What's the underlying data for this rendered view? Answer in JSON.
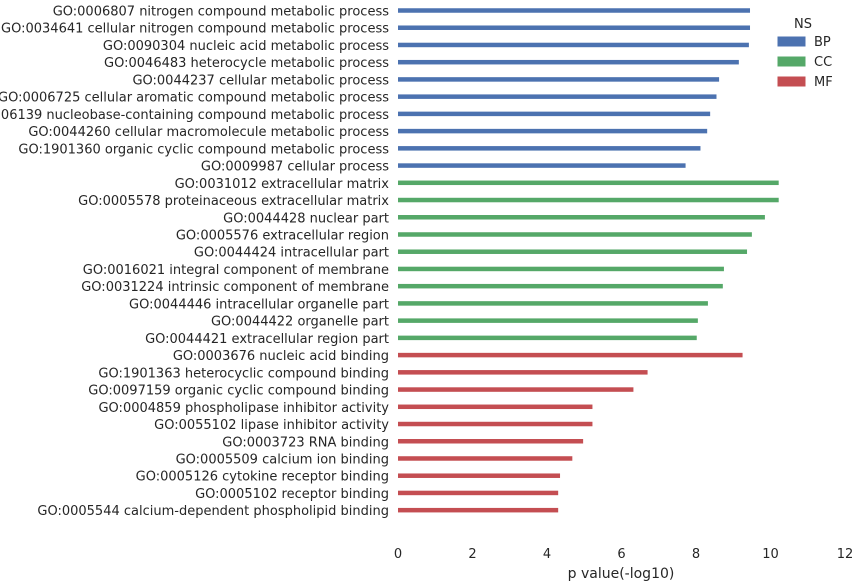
{
  "chart_data": {
    "type": "bar",
    "orientation": "horizontal",
    "xlabel": "p value(-log10)",
    "ylabel": "",
    "xlim": [
      0,
      12
    ],
    "xticks": [
      0,
      2,
      4,
      6,
      8,
      10,
      12
    ],
    "grid": false,
    "legend": {
      "title": "NS",
      "placement": "top-right",
      "entries": [
        {
          "name": "BP",
          "color": "#4C72B0"
        },
        {
          "name": "CC",
          "color": "#55A868"
        },
        {
          "name": "MF",
          "color": "#C44E52"
        }
      ]
    },
    "categories": [
      "GO:0006807 nitrogen compound metabolic process",
      "GO:0034641 cellular nitrogen compound metabolic process",
      "GO:0090304 nucleic acid metabolic process",
      "GO:0046483 heterocycle metabolic process",
      "GO:0044237 cellular metabolic process",
      "GO:0006725 cellular aromatic compound metabolic process",
      "GO:0006139 nucleobase-containing compound metabolic process",
      "GO:0044260 cellular macromolecule metabolic process",
      "GO:1901360 organic cyclic compound metabolic process",
      "GO:0009987 cellular process",
      "GO:0031012 extracellular matrix",
      "GO:0005578 proteinaceous extracellular matrix",
      "GO:0044428 nuclear part",
      "GO:0005576 extracellular region",
      "GO:0044424 intracellular part",
      "GO:0016021 integral component of membrane",
      "GO:0031224 intrinsic component of membrane",
      "GO:0044446 intracellular organelle part",
      "GO:0044422 organelle part",
      "GO:0044421 extracellular region part",
      "GO:0003676 nucleic acid binding",
      "GO:1901363 heterocyclic compound binding",
      "GO:0097159 organic cyclic compound binding",
      "GO:0004859 phospholipase inhibitor activity",
      "GO:0055102 lipase inhibitor activity",
      "GO:0003723 RNA binding",
      "GO:0005509 calcium ion binding",
      "GO:0005126 cytokine receptor binding",
      "GO:0005102 receptor binding",
      "GO:0005544 calcium-dependent phospholipid binding"
    ],
    "values": [
      9.45,
      9.45,
      9.42,
      9.15,
      8.62,
      8.55,
      8.38,
      8.3,
      8.12,
      7.72,
      10.22,
      10.22,
      9.85,
      9.5,
      9.37,
      8.75,
      8.72,
      8.32,
      8.05,
      8.02,
      9.25,
      6.7,
      6.32,
      5.22,
      5.22,
      4.97,
      4.68,
      4.35,
      4.3,
      4.3
    ],
    "namespace": [
      "BP",
      "BP",
      "BP",
      "BP",
      "BP",
      "BP",
      "BP",
      "BP",
      "BP",
      "BP",
      "CC",
      "CC",
      "CC",
      "CC",
      "CC",
      "CC",
      "CC",
      "CC",
      "CC",
      "CC",
      "MF",
      "MF",
      "MF",
      "MF",
      "MF",
      "MF",
      "MF",
      "MF",
      "MF",
      "MF"
    ]
  }
}
